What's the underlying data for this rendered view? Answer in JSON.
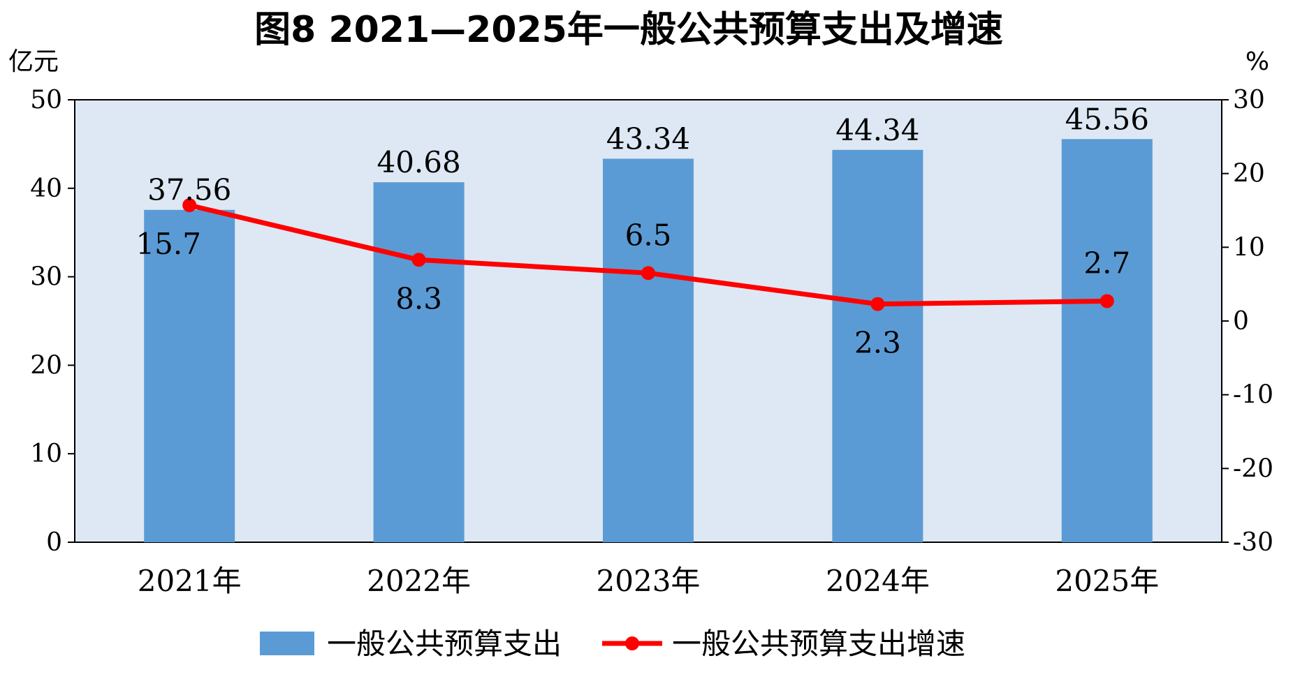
{
  "chart_data": {
    "type": "bar",
    "title": "图8  2021—2025年一般公共预算支出及增速",
    "y_left_unit": "亿元",
    "y_right_unit": "%",
    "categories": [
      "2021年",
      "2022年",
      "2023年",
      "2024年",
      "2025年"
    ],
    "ylim_left": [
      0,
      50
    ],
    "ylim_right": [
      -30,
      30
    ],
    "yticks_left": [
      "0",
      "10",
      "20",
      "30",
      "40",
      "50"
    ],
    "yticks_right": [
      "-30",
      "-20",
      "-10",
      "0",
      "10",
      "20",
      "30"
    ],
    "series": [
      {
        "name": "一般公共预算支出",
        "type": "bar",
        "axis": "left",
        "values": [
          37.56,
          40.68,
          43.34,
          44.34,
          45.56
        ],
        "labels": [
          "37.56",
          "40.68",
          "43.34",
          "44.34",
          "45.56"
        ],
        "color": "#5b9bd5"
      },
      {
        "name": "一般公共预算支出增速",
        "type": "line",
        "axis": "right",
        "values": [
          15.7,
          8.3,
          6.5,
          2.3,
          2.7
        ],
        "labels": [
          "15.7",
          "8.3",
          "6.5",
          "2.3",
          "2.7"
        ],
        "color": "#ff0000"
      }
    ],
    "plot_background": "#dde8f4",
    "grid": false,
    "legend_position": "bottom"
  }
}
